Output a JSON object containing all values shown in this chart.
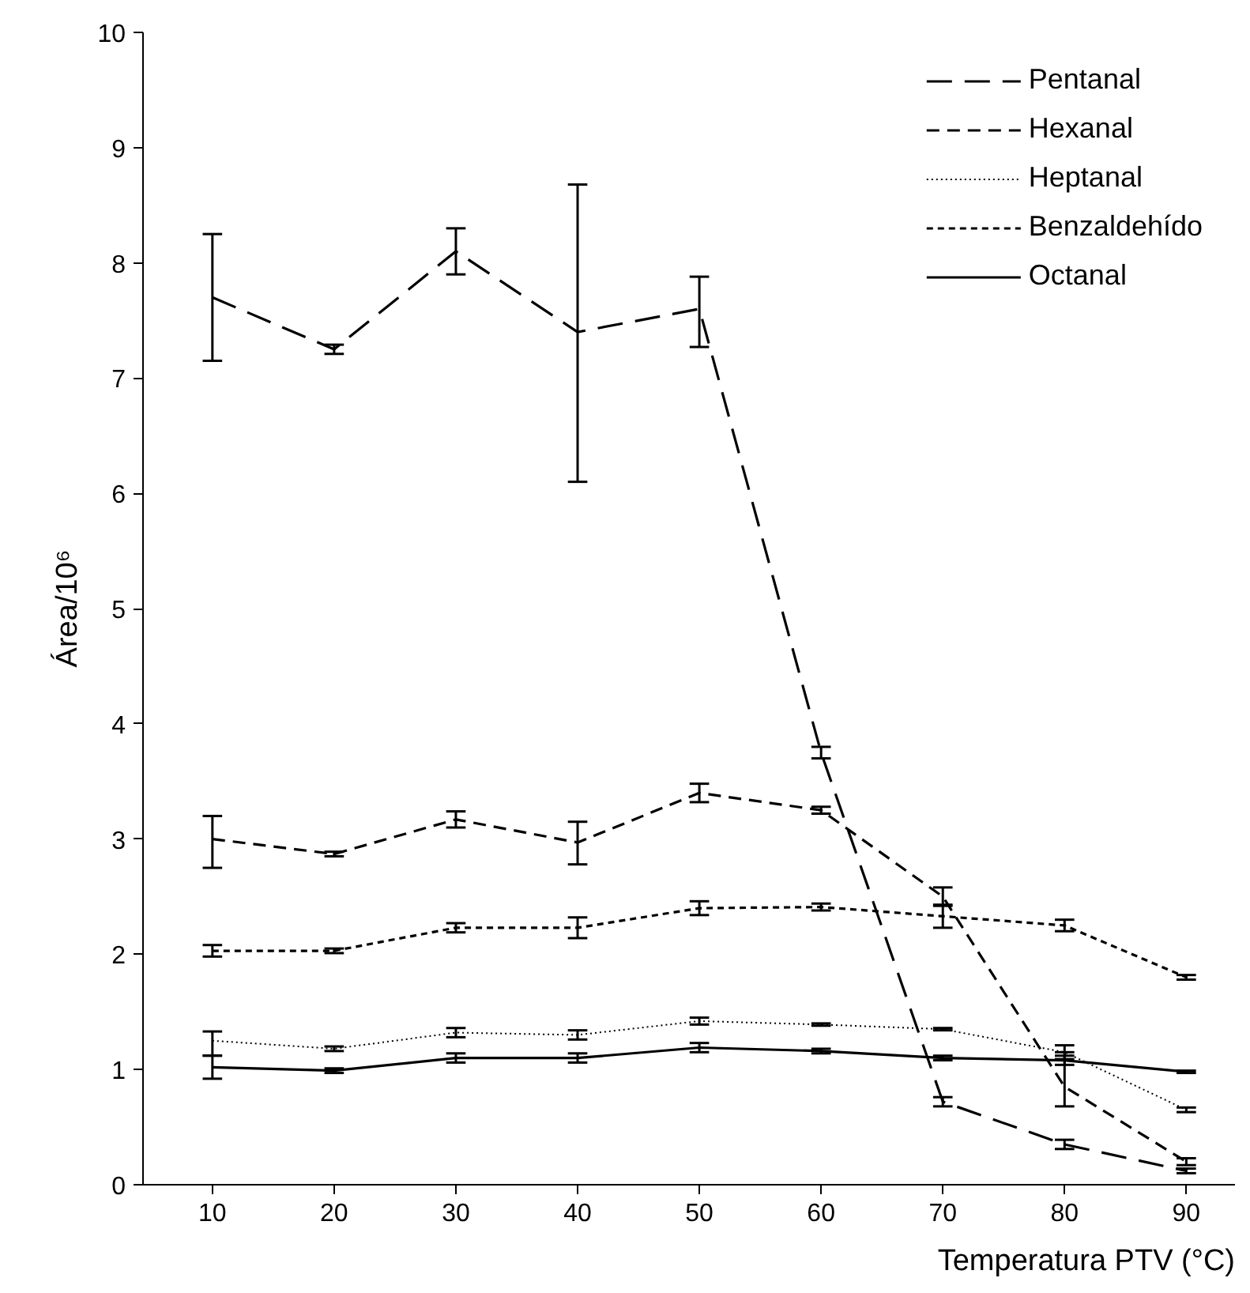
{
  "chart_data": {
    "type": "line",
    "xlabel": "Temperatura PTV (°C)",
    "ylabel": "Área/10⁶",
    "categories": [
      "10",
      "20",
      "30",
      "40",
      "50",
      "60",
      "70",
      "80",
      "90"
    ],
    "ylim": [
      0,
      10
    ],
    "yticks": [
      0,
      1,
      2,
      3,
      4,
      5,
      6,
      7,
      8,
      9,
      10
    ],
    "grid": false,
    "legend": "top right",
    "marker": "none",
    "series": [
      {
        "name": "Pentanal",
        "color": "#000000",
        "line_style": "dashed",
        "values": [
          7.7,
          7.25,
          8.1,
          7.4,
          7.6,
          3.75,
          0.72,
          0.35,
          0.12
        ],
        "errors": [
          [
            7.15,
            8.25
          ],
          0.04,
          [
            7.9,
            8.3
          ],
          [
            6.1,
            8.68
          ],
          [
            7.27,
            7.88
          ],
          0.05,
          0.04,
          0.04,
          0.02
        ]
      },
      {
        "name": "Hexanal",
        "color": "#000000",
        "line_style": "dashed",
        "values": [
          3.0,
          2.87,
          3.17,
          2.97,
          3.4,
          3.25,
          2.5,
          0.85,
          0.2
        ],
        "errors": [
          [
            2.75,
            3.2
          ],
          0.02,
          0.07,
          [
            2.78,
            3.15
          ],
          0.08,
          0.03,
          0.08,
          [
            0.68,
            1.15
          ],
          0.03
        ]
      },
      {
        "name": "Heptanal",
        "color": "#000000",
        "line_style": "dotted",
        "values": [
          1.25,
          1.18,
          1.32,
          1.3,
          1.42,
          1.39,
          1.35,
          1.15,
          0.65
        ],
        "errors": [
          [
            1.12,
            1.33
          ],
          0.02,
          0.04,
          0.04,
          0.03,
          0.01,
          0.01,
          0.06,
          0.02
        ]
      },
      {
        "name": "Benzaldehído",
        "color": "#000000",
        "line_style": "dashed",
        "values": [
          2.03,
          2.03,
          2.23,
          2.23,
          2.4,
          2.41,
          2.33,
          2.25,
          1.8
        ],
        "errors": [
          0.05,
          0.02,
          0.04,
          0.09,
          0.06,
          0.03,
          0.1,
          0.05,
          0.02
        ]
      },
      {
        "name": "Octanal",
        "color": "#000000",
        "line_style": "solid",
        "values": [
          1.02,
          0.99,
          1.1,
          1.1,
          1.19,
          1.16,
          1.1,
          1.08,
          0.98
        ],
        "errors": [
          [
            0.92,
            1.12
          ],
          0.02,
          0.04,
          0.04,
          0.04,
          0.02,
          0.02,
          0.04,
          0.01
        ]
      }
    ]
  }
}
